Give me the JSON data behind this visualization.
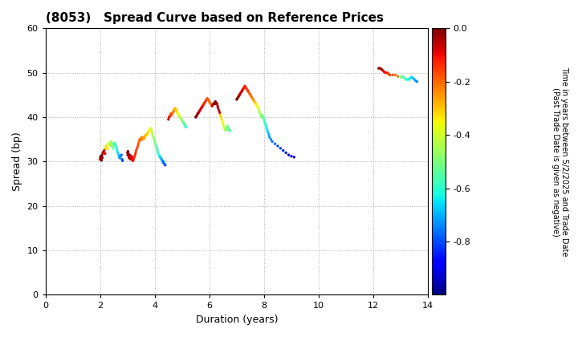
{
  "title": "(8053)   Spread Curve based on Reference Prices",
  "xlabel": "Duration (years)",
  "ylabel": "Spread (bp)",
  "xlim": [
    0,
    14
  ],
  "ylim": [
    0,
    60
  ],
  "xticks": [
    0,
    2,
    4,
    6,
    8,
    10,
    12,
    14
  ],
  "yticks": [
    0,
    10,
    20,
    30,
    40,
    50,
    60
  ],
  "colorbar_label_line1": "Time in years between 5/2/2025 and Trade Date",
  "colorbar_label_line2": "(Past Trade Date is given as negative)",
  "colorbar_vmin": -1.0,
  "colorbar_vmax": 0.0,
  "colorbar_ticks": [
    0.0,
    -0.2,
    -0.4,
    -0.6,
    -0.8
  ],
  "background_color": "#ffffff",
  "grid_color": "#b0b0b0",
  "scatter_size": 6,
  "title_fontsize": 11,
  "axis_fontsize": 9,
  "tick_fontsize": 8,
  "points": [
    [
      2.0,
      30.5,
      0.0
    ],
    [
      2.01,
      31.0,
      -0.02
    ],
    [
      2.02,
      30.8,
      -0.04
    ],
    [
      2.03,
      31.2,
      0.0
    ],
    [
      2.05,
      30.3,
      -0.01
    ],
    [
      2.06,
      30.7,
      -0.03
    ],
    [
      2.07,
      31.5,
      0.0
    ],
    [
      2.08,
      30.9,
      -0.02
    ],
    [
      2.1,
      32.0,
      -0.05
    ],
    [
      2.12,
      32.2,
      -0.06
    ],
    [
      2.15,
      32.5,
      -0.07
    ],
    [
      2.18,
      31.8,
      -0.08
    ],
    [
      2.2,
      33.0,
      -0.3
    ],
    [
      2.22,
      33.5,
      -0.32
    ],
    [
      2.25,
      33.2,
      -0.34
    ],
    [
      2.28,
      32.8,
      -0.36
    ],
    [
      2.3,
      34.0,
      -0.38
    ],
    [
      2.32,
      33.8,
      -0.4
    ],
    [
      2.35,
      34.2,
      -0.42
    ],
    [
      2.38,
      33.6,
      -0.44
    ],
    [
      2.4,
      34.5,
      -0.46
    ],
    [
      2.42,
      34.0,
      -0.48
    ],
    [
      2.45,
      33.5,
      -0.5
    ],
    [
      2.48,
      33.0,
      -0.52
    ],
    [
      2.5,
      33.8,
      -0.54
    ],
    [
      2.52,
      34.2,
      -0.56
    ],
    [
      2.55,
      34.0,
      -0.58
    ],
    [
      2.58,
      33.5,
      -0.6
    ],
    [
      2.6,
      33.0,
      -0.62
    ],
    [
      2.62,
      32.5,
      -0.64
    ],
    [
      2.65,
      32.0,
      -0.66
    ],
    [
      2.68,
      31.5,
      -0.68
    ],
    [
      2.7,
      31.0,
      -0.7
    ],
    [
      2.72,
      30.8,
      -0.72
    ],
    [
      2.75,
      31.2,
      -0.74
    ],
    [
      2.78,
      31.5,
      -0.76
    ],
    [
      2.8,
      30.5,
      -0.78
    ],
    [
      2.82,
      30.2,
      -0.8
    ],
    [
      3.0,
      32.0,
      0.0
    ],
    [
      3.01,
      31.5,
      -0.01
    ],
    [
      3.02,
      32.3,
      0.0
    ],
    [
      3.03,
      31.8,
      -0.02
    ],
    [
      3.05,
      31.2,
      -0.03
    ],
    [
      3.06,
      30.8,
      -0.04
    ],
    [
      3.08,
      31.5,
      -0.05
    ],
    [
      3.1,
      31.0,
      -0.06
    ],
    [
      3.12,
      30.5,
      -0.07
    ],
    [
      3.15,
      31.2,
      -0.08
    ],
    [
      3.18,
      30.8,
      -0.09
    ],
    [
      3.2,
      30.2,
      -0.1
    ],
    [
      3.22,
      30.5,
      -0.11
    ],
    [
      3.25,
      31.0,
      -0.12
    ],
    [
      3.28,
      31.5,
      -0.13
    ],
    [
      3.3,
      32.0,
      -0.14
    ],
    [
      3.32,
      32.5,
      -0.15
    ],
    [
      3.35,
      33.0,
      -0.16
    ],
    [
      3.38,
      33.5,
      -0.17
    ],
    [
      3.4,
      34.0,
      -0.18
    ],
    [
      3.42,
      34.5,
      -0.19
    ],
    [
      3.45,
      35.0,
      -0.2
    ],
    [
      3.48,
      34.8,
      -0.21
    ],
    [
      3.5,
      35.2,
      -0.22
    ],
    [
      3.52,
      35.5,
      -0.23
    ],
    [
      3.55,
      35.0,
      -0.24
    ],
    [
      3.58,
      35.3,
      -0.25
    ],
    [
      3.6,
      35.5,
      -0.26
    ],
    [
      3.62,
      35.2,
      -0.27
    ],
    [
      3.65,
      35.8,
      -0.28
    ],
    [
      3.68,
      36.0,
      -0.29
    ],
    [
      3.7,
      36.2,
      -0.3
    ],
    [
      3.72,
      36.0,
      -0.31
    ],
    [
      3.75,
      36.5,
      -0.32
    ],
    [
      3.78,
      36.8,
      -0.33
    ],
    [
      3.8,
      37.0,
      -0.34
    ],
    [
      3.82,
      37.2,
      -0.36
    ],
    [
      3.85,
      37.5,
      -0.38
    ],
    [
      3.88,
      37.0,
      -0.4
    ],
    [
      3.9,
      36.5,
      -0.42
    ],
    [
      3.92,
      36.0,
      -0.44
    ],
    [
      3.95,
      35.5,
      -0.46
    ],
    [
      3.98,
      35.0,
      -0.48
    ],
    [
      4.0,
      34.5,
      -0.5
    ],
    [
      4.02,
      34.0,
      -0.52
    ],
    [
      4.05,
      33.5,
      -0.54
    ],
    [
      4.08,
      33.0,
      -0.56
    ],
    [
      4.1,
      32.5,
      -0.58
    ],
    [
      4.12,
      32.0,
      -0.6
    ],
    [
      4.15,
      31.5,
      -0.62
    ],
    [
      4.18,
      31.2,
      -0.64
    ],
    [
      4.2,
      31.0,
      -0.66
    ],
    [
      4.22,
      30.8,
      -0.68
    ],
    [
      4.25,
      30.5,
      -0.7
    ],
    [
      4.28,
      30.2,
      -0.72
    ],
    [
      4.3,
      29.8,
      -0.74
    ],
    [
      4.32,
      30.0,
      -0.76
    ],
    [
      4.35,
      29.5,
      -0.78
    ],
    [
      4.38,
      29.2,
      -0.8
    ],
    [
      4.5,
      39.5,
      -0.08
    ],
    [
      4.52,
      40.0,
      -0.1
    ],
    [
      4.55,
      40.2,
      -0.12
    ],
    [
      4.58,
      40.5,
      -0.14
    ],
    [
      4.6,
      40.8,
      -0.16
    ],
    [
      4.62,
      40.5,
      -0.18
    ],
    [
      4.65,
      41.0,
      -0.2
    ],
    [
      4.68,
      41.2,
      -0.22
    ],
    [
      4.7,
      41.5,
      -0.24
    ],
    [
      4.72,
      41.8,
      -0.26
    ],
    [
      4.75,
      42.0,
      -0.28
    ],
    [
      4.78,
      41.8,
      -0.3
    ],
    [
      4.8,
      41.5,
      -0.32
    ],
    [
      4.82,
      41.0,
      -0.34
    ],
    [
      4.85,
      40.8,
      -0.36
    ],
    [
      4.88,
      40.5,
      -0.38
    ],
    [
      4.9,
      40.2,
      -0.4
    ],
    [
      4.92,
      40.0,
      -0.42
    ],
    [
      4.95,
      39.8,
      -0.44
    ],
    [
      4.98,
      39.5,
      -0.46
    ],
    [
      5.0,
      39.2,
      -0.48
    ],
    [
      5.02,
      39.0,
      -0.5
    ],
    [
      5.05,
      38.8,
      -0.52
    ],
    [
      5.08,
      38.5,
      -0.54
    ],
    [
      5.1,
      38.2,
      -0.56
    ],
    [
      5.12,
      38.0,
      -0.58
    ],
    [
      5.15,
      37.8,
      -0.6
    ],
    [
      5.5,
      40.0,
      0.0
    ],
    [
      5.52,
      40.2,
      -0.01
    ],
    [
      5.55,
      40.5,
      -0.02
    ],
    [
      5.57,
      40.8,
      -0.03
    ],
    [
      5.6,
      41.0,
      -0.04
    ],
    [
      5.62,
      41.2,
      -0.05
    ],
    [
      5.65,
      41.5,
      -0.06
    ],
    [
      5.68,
      41.8,
      -0.07
    ],
    [
      5.7,
      42.0,
      -0.08
    ],
    [
      5.72,
      42.2,
      -0.09
    ],
    [
      5.75,
      42.5,
      -0.1
    ],
    [
      5.78,
      42.8,
      -0.11
    ],
    [
      5.8,
      43.0,
      -0.12
    ],
    [
      5.82,
      43.2,
      -0.13
    ],
    [
      5.85,
      43.5,
      -0.14
    ],
    [
      5.88,
      43.8,
      -0.15
    ],
    [
      5.9,
      44.0,
      -0.16
    ],
    [
      5.92,
      44.2,
      -0.17
    ],
    [
      5.95,
      44.0,
      -0.18
    ],
    [
      5.98,
      43.8,
      -0.19
    ],
    [
      6.0,
      43.5,
      -0.2
    ],
    [
      6.02,
      43.2,
      -0.21
    ],
    [
      6.05,
      43.0,
      -0.22
    ],
    [
      6.07,
      42.8,
      -0.23
    ],
    [
      6.1,
      42.5,
      -0.08
    ],
    [
      6.12,
      42.8,
      -0.06
    ],
    [
      6.15,
      43.0,
      -0.04
    ],
    [
      6.18,
      43.2,
      -0.02
    ],
    [
      6.2,
      43.0,
      0.0
    ],
    [
      6.22,
      43.5,
      -0.01
    ],
    [
      6.25,
      43.2,
      -0.02
    ],
    [
      6.28,
      43.0,
      -0.03
    ],
    [
      6.3,
      42.5,
      -0.04
    ],
    [
      6.32,
      42.0,
      -0.05
    ],
    [
      6.35,
      41.5,
      -0.06
    ],
    [
      6.38,
      41.0,
      -0.07
    ],
    [
      6.4,
      40.5,
      -0.3
    ],
    [
      6.42,
      40.0,
      -0.32
    ],
    [
      6.45,
      39.5,
      -0.34
    ],
    [
      6.48,
      39.0,
      -0.36
    ],
    [
      6.5,
      38.5,
      -0.38
    ],
    [
      6.52,
      38.0,
      -0.4
    ],
    [
      6.55,
      37.5,
      -0.42
    ],
    [
      6.58,
      37.2,
      -0.44
    ],
    [
      6.6,
      37.0,
      -0.46
    ],
    [
      6.62,
      37.5,
      -0.48
    ],
    [
      6.65,
      38.0,
      -0.5
    ],
    [
      6.68,
      37.8,
      -0.52
    ],
    [
      6.7,
      37.5,
      -0.54
    ],
    [
      6.72,
      37.2,
      -0.56
    ],
    [
      6.75,
      37.0,
      -0.58
    ],
    [
      7.0,
      44.0,
      0.0
    ],
    [
      7.02,
      44.2,
      -0.01
    ],
    [
      7.05,
      44.5,
      -0.02
    ],
    [
      7.08,
      44.8,
      -0.03
    ],
    [
      7.1,
      45.0,
      -0.04
    ],
    [
      7.12,
      45.2,
      -0.05
    ],
    [
      7.15,
      45.5,
      -0.06
    ],
    [
      7.18,
      45.8,
      -0.07
    ],
    [
      7.2,
      46.0,
      -0.08
    ],
    [
      7.22,
      46.2,
      -0.09
    ],
    [
      7.25,
      46.5,
      -0.1
    ],
    [
      7.28,
      46.8,
      -0.11
    ],
    [
      7.3,
      47.0,
      -0.12
    ],
    [
      7.32,
      46.8,
      -0.13
    ],
    [
      7.35,
      46.5,
      -0.14
    ],
    [
      7.38,
      46.2,
      -0.15
    ],
    [
      7.4,
      46.0,
      -0.16
    ],
    [
      7.42,
      45.8,
      -0.17
    ],
    [
      7.45,
      45.5,
      -0.18
    ],
    [
      7.48,
      45.2,
      -0.19
    ],
    [
      7.5,
      45.0,
      -0.2
    ],
    [
      7.52,
      44.8,
      -0.21
    ],
    [
      7.55,
      44.5,
      -0.22
    ],
    [
      7.58,
      44.2,
      -0.23
    ],
    [
      7.6,
      44.0,
      -0.24
    ],
    [
      7.62,
      43.8,
      -0.26
    ],
    [
      7.65,
      43.5,
      -0.28
    ],
    [
      7.68,
      43.2,
      -0.3
    ],
    [
      7.7,
      43.0,
      -0.32
    ],
    [
      7.72,
      42.8,
      -0.34
    ],
    [
      7.75,
      42.5,
      -0.36
    ],
    [
      7.78,
      42.2,
      -0.38
    ],
    [
      7.8,
      42.0,
      -0.4
    ],
    [
      7.82,
      41.5,
      -0.42
    ],
    [
      7.85,
      41.0,
      -0.44
    ],
    [
      7.88,
      40.5,
      -0.46
    ],
    [
      7.9,
      40.0,
      -0.48
    ],
    [
      7.92,
      40.5,
      -0.5
    ],
    [
      7.95,
      40.2,
      -0.52
    ],
    [
      7.98,
      40.0,
      -0.54
    ],
    [
      8.0,
      39.5,
      -0.56
    ],
    [
      8.02,
      39.0,
      -0.58
    ],
    [
      8.05,
      38.5,
      -0.6
    ],
    [
      8.08,
      38.0,
      -0.62
    ],
    [
      8.1,
      37.5,
      -0.64
    ],
    [
      8.12,
      37.0,
      -0.66
    ],
    [
      8.15,
      36.5,
      -0.68
    ],
    [
      8.18,
      36.0,
      -0.7
    ],
    [
      8.2,
      35.5,
      -0.72
    ],
    [
      8.25,
      35.0,
      -0.74
    ],
    [
      8.3,
      34.5,
      -0.76
    ],
    [
      8.4,
      34.0,
      -0.78
    ],
    [
      8.5,
      33.5,
      -0.8
    ],
    [
      8.6,
      33.0,
      -0.82
    ],
    [
      8.7,
      32.5,
      -0.84
    ],
    [
      8.8,
      32.0,
      -0.86
    ],
    [
      8.9,
      31.5,
      -0.88
    ],
    [
      9.0,
      31.2,
      -0.9
    ],
    [
      9.1,
      31.0,
      -0.92
    ],
    [
      12.2,
      51.0,
      0.0
    ],
    [
      12.25,
      51.0,
      -0.02
    ],
    [
      12.3,
      50.8,
      -0.04
    ],
    [
      12.35,
      50.5,
      -0.06
    ],
    [
      12.4,
      50.2,
      -0.08
    ],
    [
      12.45,
      50.0,
      -0.1
    ],
    [
      12.5,
      50.0,
      -0.12
    ],
    [
      12.55,
      49.8,
      -0.14
    ],
    [
      12.6,
      49.5,
      -0.16
    ],
    [
      12.7,
      49.5,
      -0.18
    ],
    [
      12.8,
      49.5,
      -0.2
    ],
    [
      12.9,
      49.2,
      -0.22
    ],
    [
      13.0,
      49.0,
      -0.5
    ],
    [
      13.05,
      49.2,
      -0.52
    ],
    [
      13.1,
      49.0,
      -0.54
    ],
    [
      13.15,
      48.8,
      -0.56
    ],
    [
      13.2,
      48.5,
      -0.58
    ],
    [
      13.25,
      48.5,
      -0.6
    ],
    [
      13.3,
      48.5,
      -0.62
    ],
    [
      13.35,
      48.8,
      -0.64
    ],
    [
      13.4,
      49.0,
      -0.66
    ],
    [
      13.45,
      48.8,
      -0.68
    ],
    [
      13.5,
      48.5,
      -0.7
    ],
    [
      13.55,
      48.2,
      -0.72
    ],
    [
      13.6,
      48.0,
      -0.74
    ]
  ]
}
